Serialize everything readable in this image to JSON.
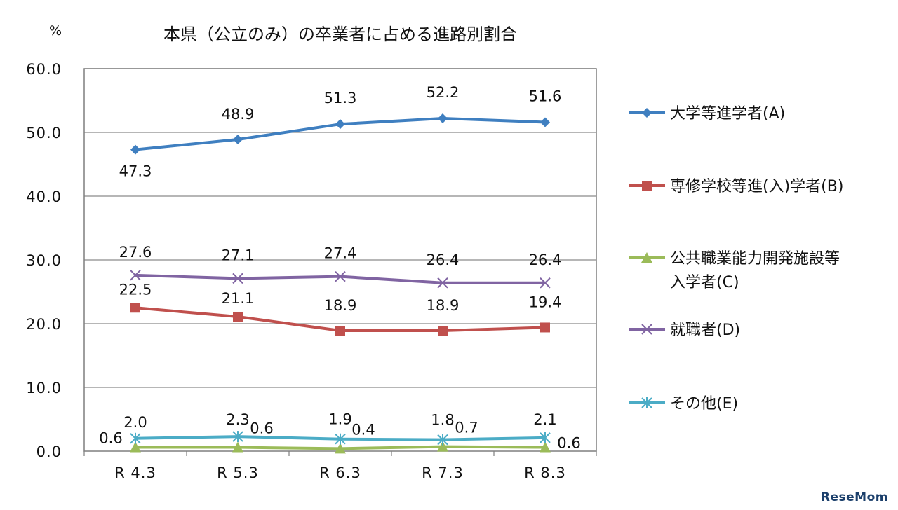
{
  "watermark": "ReseMom",
  "chart_data": {
    "type": "line",
    "title": "本県（公立のみ）の卒業者に占める進路別割合",
    "ylabel": "%",
    "categories": [
      "R 4.3",
      "R 5.3",
      "R 6.3",
      "R 7.3",
      "R 8.3"
    ],
    "ylim": [
      0,
      60
    ],
    "yticks": [
      "0.0",
      "10.0",
      "20.0",
      "30.0",
      "40.0",
      "50.0",
      "60.0"
    ],
    "grid": true,
    "legend_position": "right",
    "series": [
      {
        "key": "A",
        "name": "大学等進学者(A)",
        "name_lines": [
          "大学等進学者(A)"
        ],
        "values": [
          47.3,
          48.9,
          51.3,
          52.2,
          51.6
        ],
        "labels": [
          "47.3",
          "48.9",
          "51.3",
          "52.2",
          "51.6"
        ],
        "color": "#3f7fc0",
        "marker": "diamond"
      },
      {
        "key": "B",
        "name": "専修学校等進(入)学者(B)",
        "name_lines": [
          "専修学校等進(入)学者(B)"
        ],
        "values": [
          22.5,
          21.1,
          18.9,
          18.9,
          19.4
        ],
        "labels": [
          "22.5",
          "21.1",
          "18.9",
          "18.9",
          "19.4"
        ],
        "color": "#c0504d",
        "marker": "square"
      },
      {
        "key": "C",
        "name": "公共職業能力開発施設等入学者(C)",
        "name_lines": [
          "公共職業能力開発施設等",
          "入学者(C)"
        ],
        "values": [
          0.6,
          0.6,
          0.4,
          0.7,
          0.6
        ],
        "labels": [
          "0.6",
          "0.6",
          "0.4",
          "0.7",
          "0.6"
        ],
        "color": "#9bbb59",
        "marker": "triangle"
      },
      {
        "key": "D",
        "name": "就職者(D)",
        "name_lines": [
          "就職者(D)"
        ],
        "values": [
          27.6,
          27.1,
          27.4,
          26.4,
          26.4
        ],
        "labels": [
          "27.6",
          "27.1",
          "27.4",
          "26.4",
          "26.4"
        ],
        "color": "#8064a2",
        "marker": "x"
      },
      {
        "key": "E",
        "name": "その他(E)",
        "name_lines": [
          "その他(E)"
        ],
        "values": [
          2.0,
          2.3,
          1.9,
          1.8,
          2.1
        ],
        "labels": [
          "2.0",
          "2.3",
          "1.9",
          "1.8",
          "2.1"
        ],
        "color": "#4bacc6",
        "marker": "star"
      }
    ]
  }
}
